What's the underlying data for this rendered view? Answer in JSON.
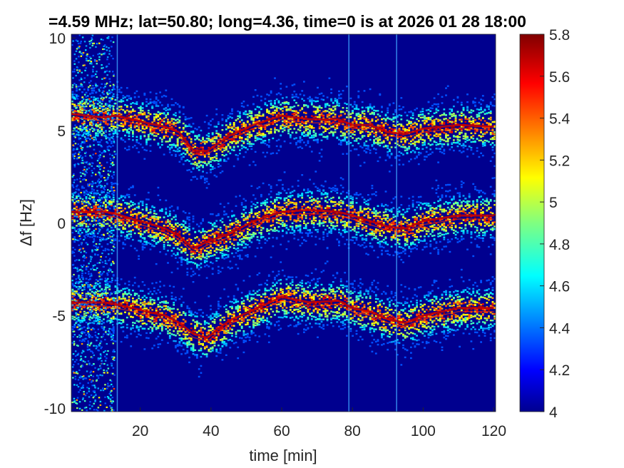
{
  "chart_data": {
    "type": "heatmap",
    "title": "=4.59 MHz;  lat=50.80; long=4.36, time=0 is at 2026 01 28 18:00",
    "xlabel": "time [min]",
    "ylabel": "Δf [Hz]",
    "xlim": [
      0.5,
      120.5
    ],
    "ylim": [
      -10.2,
      10.2
    ],
    "x_ticks": [
      "20",
      "40",
      "60",
      "80",
      "100",
      "120"
    ],
    "y_ticks": [
      "-10",
      "-5",
      "0",
      "5",
      "10"
    ],
    "colorbar": {
      "range": [
        4,
        5.8
      ],
      "ticks": [
        "4",
        "4.2",
        "4.4",
        "4.6",
        "4.8",
        "5",
        "5.2",
        "5.4",
        "5.6",
        "5.8"
      ],
      "colormap": "jet"
    },
    "background_color": "#00008f",
    "broadband_noise_interval_min": [
      0.5,
      12.5
    ],
    "spike_times_min": [
      13.5,
      79,
      92.5
    ],
    "tracks_center_hz": [
      {
        "x": [
          0,
          5,
          10,
          13,
          18,
          22,
          27,
          31,
          35,
          39,
          45,
          52,
          60,
          68,
          76,
          80,
          85,
          90,
          95,
          100,
          110,
          120
        ],
        "y": [
          5.9,
          5.8,
          5.7,
          5.8,
          5.6,
          5.4,
          5.2,
          4.9,
          3.9,
          3.9,
          4.7,
          5.3,
          5.8,
          5.6,
          5.6,
          5.3,
          5.3,
          4.9,
          4.8,
          5.1,
          5.3,
          5.2
        ]
      },
      {
        "x": [
          0,
          5,
          10,
          13,
          18,
          22,
          27,
          31,
          35,
          39,
          45,
          52,
          60,
          68,
          76,
          80,
          85,
          90,
          95,
          100,
          110,
          120
        ],
        "y": [
          0.6,
          0.6,
          0.6,
          0.5,
          0.2,
          0.0,
          -0.3,
          -0.7,
          -1.4,
          -1.0,
          -0.6,
          0.1,
          0.6,
          0.7,
          0.6,
          0.4,
          0.1,
          -0.2,
          -0.3,
          0.1,
          0.4,
          0.4
        ]
      },
      {
        "x": [
          0,
          5,
          10,
          13,
          18,
          22,
          27,
          31,
          35,
          39,
          45,
          52,
          60,
          68,
          76,
          80,
          85,
          90,
          95,
          100,
          110,
          120
        ],
        "y": [
          -4.3,
          -4.3,
          -4.3,
          -4.4,
          -4.6,
          -4.8,
          -5.0,
          -5.4,
          -6.0,
          -6.2,
          -5.3,
          -4.7,
          -4.0,
          -4.3,
          -4.2,
          -4.6,
          -4.8,
          -5.2,
          -5.4,
          -5.0,
          -4.6,
          -4.6
        ]
      }
    ]
  }
}
